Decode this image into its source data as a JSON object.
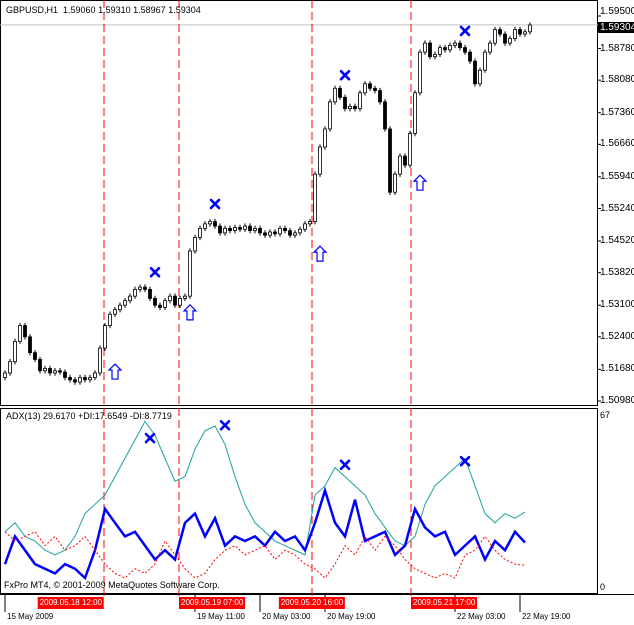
{
  "header": {
    "symbol": "GBPUSD,H1",
    "open": "1.59060",
    "high": "1.59310",
    "low": "1.58967",
    "close": "1.59304"
  },
  "indicator_header": "ADX(13) 29.6170 +DI:17.6549 -DI:8.7719",
  "copyright": "FxPro MT4, © 2001-2009 MetaQuotes Software Corp.",
  "bid_label": "1.59304",
  "colors": {
    "adx": "#20a0a0",
    "plus_di": "#0000ff",
    "minus_di": "#ff0000",
    "vline": "#ff0000",
    "marker": "#0000ff",
    "bid_line": "#c0c0c0"
  },
  "chart_data": [
    {
      "type": "candlestick",
      "title": "GBPUSD,H1",
      "ylim": [
        1.5098,
        1.595
      ],
      "yticks": [
        "1.59500",
        "1.58780",
        "1.58080",
        "1.57360",
        "1.56660",
        "1.55940",
        "1.55240",
        "1.54520",
        "1.53820",
        "1.53100",
        "1.52400",
        "1.51680",
        "1.50980"
      ],
      "first_open": 1.515,
      "close": [
        1.516,
        1.5185,
        1.523,
        1.5265,
        1.524,
        1.5205,
        1.519,
        1.5165,
        1.517,
        1.516,
        1.5165,
        1.5162,
        1.515,
        1.5145,
        1.514,
        1.515,
        1.5145,
        1.515,
        1.516,
        1.5215,
        1.5265,
        1.529,
        1.53,
        1.531,
        1.532,
        1.533,
        1.5345,
        1.535,
        1.5345,
        1.5325,
        1.531,
        1.5305,
        1.532,
        1.533,
        1.531,
        1.5325,
        1.533,
        1.543,
        1.546,
        1.548,
        1.549,
        1.5495,
        1.5485,
        1.547,
        1.548,
        1.5475,
        1.5482,
        1.5478,
        1.5485,
        1.5475,
        1.548,
        1.547,
        1.5465,
        1.5472,
        1.5468,
        1.548,
        1.5475,
        1.5465,
        1.547,
        1.5478,
        1.549,
        1.5495,
        1.56,
        1.566,
        1.57,
        1.576,
        1.579,
        1.577,
        1.5745,
        1.575,
        1.5745,
        1.578,
        1.58,
        1.579,
        1.5785,
        1.576,
        1.57,
        1.556,
        1.56,
        1.564,
        1.562,
        1.569,
        1.578,
        1.587,
        1.589,
        1.586,
        1.5865,
        1.588,
        1.5875,
        1.5885,
        1.589,
        1.588,
        1.587,
        1.585,
        1.58,
        1.583,
        1.587,
        1.589,
        1.592,
        1.591,
        1.589,
        1.59,
        1.592,
        1.591,
        1.5915,
        1.593
      ],
      "bid": 1.59304,
      "up_arrows": [
        {
          "index": 22,
          "price": 1.5162
        },
        {
          "index": 37,
          "price": 1.5293
        },
        {
          "index": 63,
          "price": 1.5423
        },
        {
          "index": 83,
          "price": 1.558
        }
      ],
      "crosses": [
        {
          "index": 30,
          "price": 1.5383
        },
        {
          "index": 42,
          "price": 1.5534
        },
        {
          "index": 68,
          "price": 1.5819
        },
        {
          "index": 92,
          "price": 1.5917
        }
      ]
    },
    {
      "type": "line",
      "title": "ADX(13)",
      "ylim": [
        0,
        67
      ],
      "yticks": [
        "67",
        "0"
      ],
      "series": [
        {
          "name": "ADX(13)",
          "values": [
            21.9,
            25.4,
            20.1,
            18.3,
            14.7,
            12.9,
            14.7,
            20.1,
            29.0,
            32.6,
            36.2,
            43.4,
            50.5,
            57.7,
            64.9,
            59.5,
            50.5,
            41.6,
            43.4,
            54.1,
            61.3,
            63.1,
            55.9,
            43.4,
            32.6,
            25.4,
            21.9,
            18.3,
            16.5,
            14.7,
            12.9,
            36.2,
            39.8,
            46.9,
            43.4,
            39.8,
            36.2,
            29.0,
            23.6,
            18.3,
            16.5,
            20.1,
            32.6,
            39.8,
            43.4,
            46.9,
            50.5,
            39.8,
            29.0,
            25.4,
            29.0,
            27.2,
            29.6
          ]
        },
        {
          "name": "+DI",
          "values": [
            9.3,
            20.1,
            14.7,
            9.3,
            7.5,
            5.7,
            9.3,
            7.5,
            3.9,
            14.7,
            30.8,
            25.4,
            20.1,
            21.9,
            16.5,
            11.1,
            14.7,
            11.1,
            25.4,
            29.0,
            20.1,
            27.2,
            16.5,
            20.1,
            18.3,
            20.1,
            16.5,
            21.9,
            18.3,
            20.1,
            14.7,
            25.4,
            38.0,
            25.4,
            20.1,
            34.4,
            18.3,
            20.1,
            21.9,
            12.9,
            16.5,
            30.8,
            23.6,
            20.1,
            21.9,
            12.9,
            16.5,
            20.1,
            11.1,
            18.3,
            14.7,
            21.9,
            17.7
          ]
        },
        {
          "name": "-DI",
          "values": [
            21.9,
            18.3,
            20.1,
            21.9,
            16.5,
            20.1,
            14.7,
            16.5,
            20.1,
            14.7,
            9.3,
            5.7,
            3.9,
            7.5,
            5.7,
            9.3,
            18.3,
            12.9,
            7.5,
            3.9,
            5.7,
            11.1,
            14.7,
            16.5,
            12.9,
            14.7,
            16.5,
            11.1,
            14.7,
            12.9,
            9.3,
            7.5,
            3.9,
            9.3,
            16.5,
            12.9,
            20.1,
            14.7,
            20.1,
            16.5,
            11.1,
            7.5,
            5.7,
            3.9,
            5.7,
            3.9,
            12.9,
            14.7,
            20.1,
            14.7,
            11.1,
            9.3,
            8.8
          ]
        }
      ],
      "crosses": [
        {
          "index": 29,
          "value": 58.4
        },
        {
          "index": 44,
          "value": 63.4
        },
        {
          "index": 68,
          "value": 48.0
        },
        {
          "index": 92,
          "value": 49.4
        }
      ]
    }
  ],
  "time_axis": {
    "labels": [
      {
        "text": "15 May 2009",
        "index": 0
      },
      {
        "text": "19 May 11:00",
        "index": 38
      },
      {
        "text": "20 May 03:00",
        "index": 51
      },
      {
        "text": "20 May 19:00",
        "index": 64
      },
      {
        "text": "22 May 03:00",
        "index": 90
      },
      {
        "text": "22 May 19:00",
        "index": 103
      }
    ],
    "separators": [
      {
        "text": "2009.05.18 12:00",
        "index": 19.8
      },
      {
        "text": "2009.05.19 07:00",
        "index": 34.8
      },
      {
        "text": "2009.05.20 16:00",
        "index": 61.4
      },
      {
        "text": "2009.05.21 17:00",
        "index": 81.2
      }
    ]
  }
}
